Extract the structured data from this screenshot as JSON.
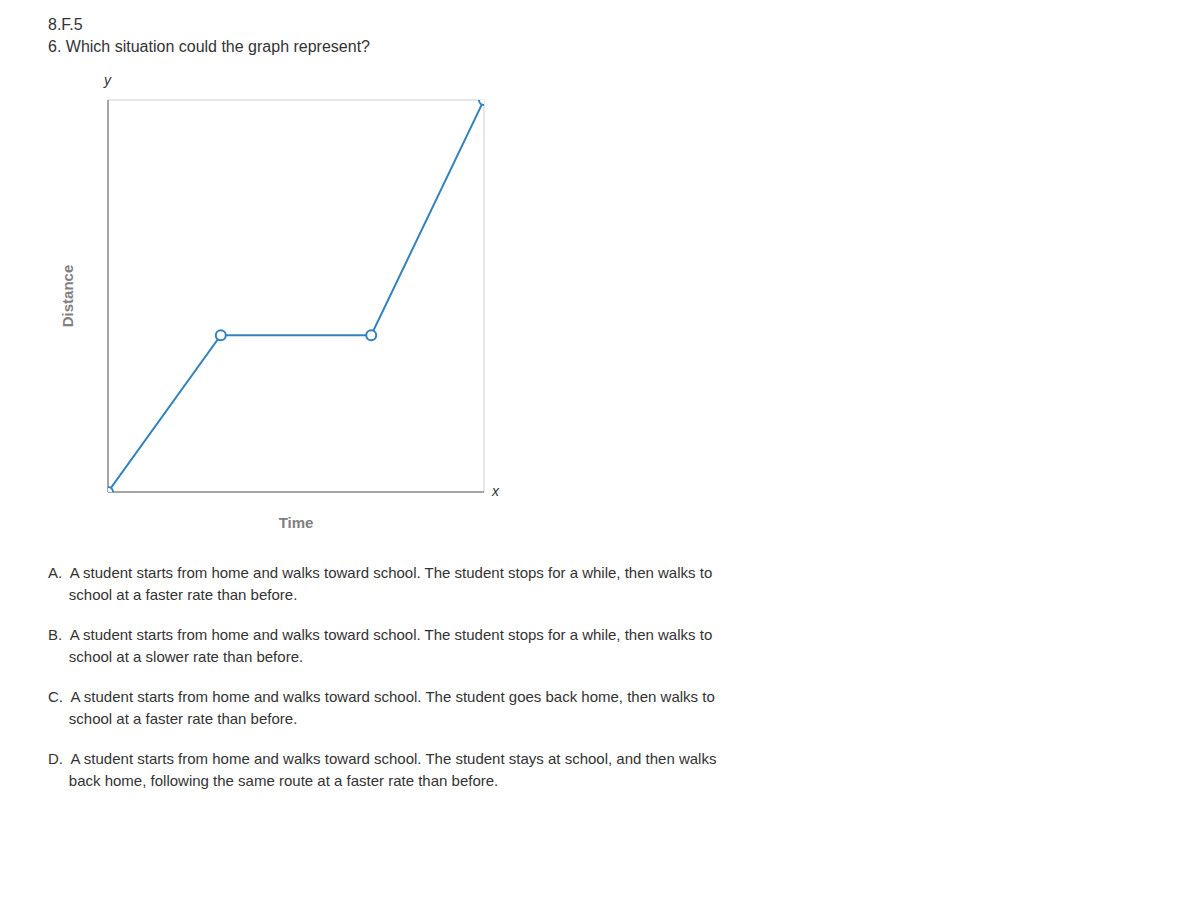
{
  "chart_data": {
    "type": "line",
    "title": "8.F.5",
    "subtitle": "6. Which situation could the graph represent?",
    "xlabel": "Time",
    "ylabel": "Distance",
    "x": [
      0,
      3,
      7,
      10
    ],
    "values": [
      0,
      4,
      4,
      10
    ],
    "xlim": [
      0,
      10
    ],
    "ylim": [
      0,
      10
    ],
    "xticks": [
      0,
      1,
      2,
      3,
      4,
      5,
      6,
      7,
      8,
      9,
      10
    ],
    "yticks": [
      0,
      1,
      2,
      3,
      4,
      5,
      6,
      7,
      8,
      9,
      10
    ],
    "grid": true,
    "tick_labels": false,
    "marker": "circle",
    "annotations": [
      "x",
      "y",
      "A.  A student starts from home and walks toward school. The student stops for a while, then walks to",
      "     school at a faster rate than before.",
      "B.  A student starts from home and walks toward school. The student stops for a while, then walks to",
      "     school at a slower rate than before.",
      "C.  A student starts from home and walks toward school. The student goes back home, then walks to",
      "     school at a faster rate than before.",
      "D.  A student starts from home and walks toward school. The student stays at school, and then walks",
      "     back home, following the same route at a faster rate than before."
    ]
  }
}
